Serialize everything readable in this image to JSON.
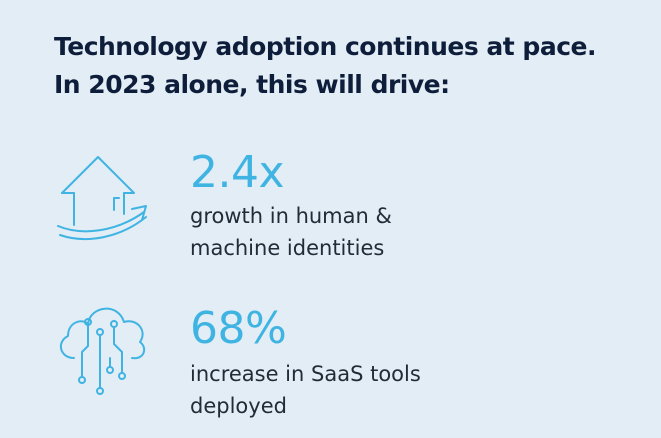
{
  "headline": {
    "line1": "Technology adoption continues at pace.",
    "line2": "In 2023 alone, this will drive:"
  },
  "stats": [
    {
      "icon": "house-arrow-icon",
      "value": "2.4x",
      "desc_line1": "growth in human &",
      "desc_line2": "machine identities"
    },
    {
      "icon": "cloud-circuit-icon",
      "value": "68%",
      "desc_line1": "increase in SaaS tools",
      "desc_line2": "deployed"
    }
  ],
  "colors": {
    "background": "#e3edf5",
    "heading": "#0e1d3a",
    "accent": "#3fb4e3",
    "body_text": "#222b38"
  }
}
